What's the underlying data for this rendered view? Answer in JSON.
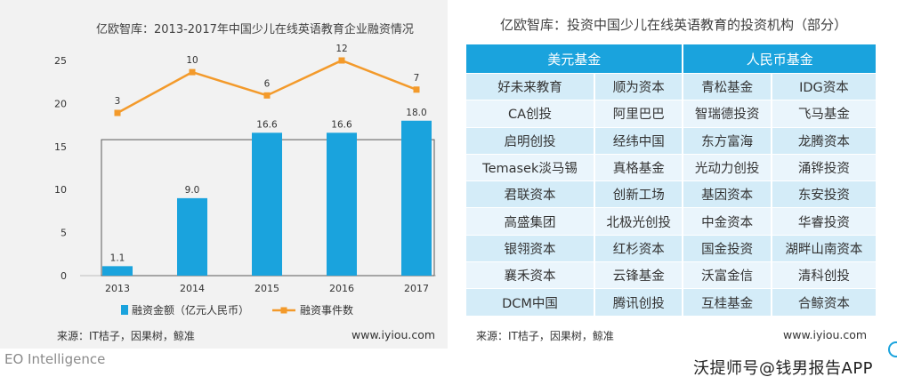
{
  "left": {
    "title": "亿欧智库：2013-2017年中国少儿在线英语教育企业融资情况",
    "source": "来源：IT桔子，因果树，鲸准",
    "site": "www.iyiou.com"
  },
  "chart_data": {
    "type": "bar+line",
    "title": "亿欧智库：2013-2017年中国少儿在线英语教育企业融资情况",
    "categories": [
      "2013",
      "2014",
      "2015",
      "2016",
      "2017"
    ],
    "series": [
      {
        "name": "融资金额（亿元人民币）",
        "type": "bar",
        "values": [
          1.1,
          9.0,
          16.6,
          16.6,
          18.0
        ],
        "labels": [
          "1.1",
          "9.0",
          "16.6",
          "16.6",
          "18.0"
        ]
      },
      {
        "name": "融资事件数",
        "type": "line",
        "values": [
          3,
          10,
          6,
          12,
          7
        ],
        "labels": [
          "3",
          "10",
          "6",
          "12",
          "7"
        ]
      }
    ],
    "ylim": [
      0,
      25
    ],
    "yticks": [
      "0",
      "5",
      "10",
      "15",
      "20",
      "25"
    ],
    "colors": {
      "bar": "#1aa3dd",
      "line": "#f39a2b"
    },
    "legend_position": "bottom"
  },
  "right": {
    "title": "亿欧智库：投资中国少儿在线英语教育的投资机构（部分）",
    "headers": [
      "美元基金",
      "人民币基金"
    ],
    "rows": [
      [
        "好未来教育",
        "顺为资本",
        "青松基金",
        "IDG资本"
      ],
      [
        "CA创投",
        "阿里巴巴",
        "智瑞德投资",
        "飞马基金"
      ],
      [
        "启明创投",
        "经纬中国",
        "东方富海",
        "龙腾资本"
      ],
      [
        "Temasek淡马锡",
        "真格基金",
        "光动力创投",
        "涌铧投资"
      ],
      [
        "君联资本",
        "创新工场",
        "基因资本",
        "东安投资"
      ],
      [
        "高盛集团",
        "北极光创投",
        "中金资本",
        "华睿投资"
      ],
      [
        "银翎资本",
        "红杉资本",
        "国金投资",
        "湖畔山南资本"
      ],
      [
        "襄禾资本",
        "云锋基金",
        "沃富金信",
        "清科创投"
      ],
      [
        "DCM中国",
        "腾讯创投",
        "互桂基金",
        "合鲸资本"
      ]
    ],
    "source": "来源：IT桔子，因果树，鲸准",
    "site": "www.iyiou.com"
  },
  "footer": {
    "brand": "EO Intelligence",
    "watermark": "沃提师号@钱男报告APP"
  }
}
